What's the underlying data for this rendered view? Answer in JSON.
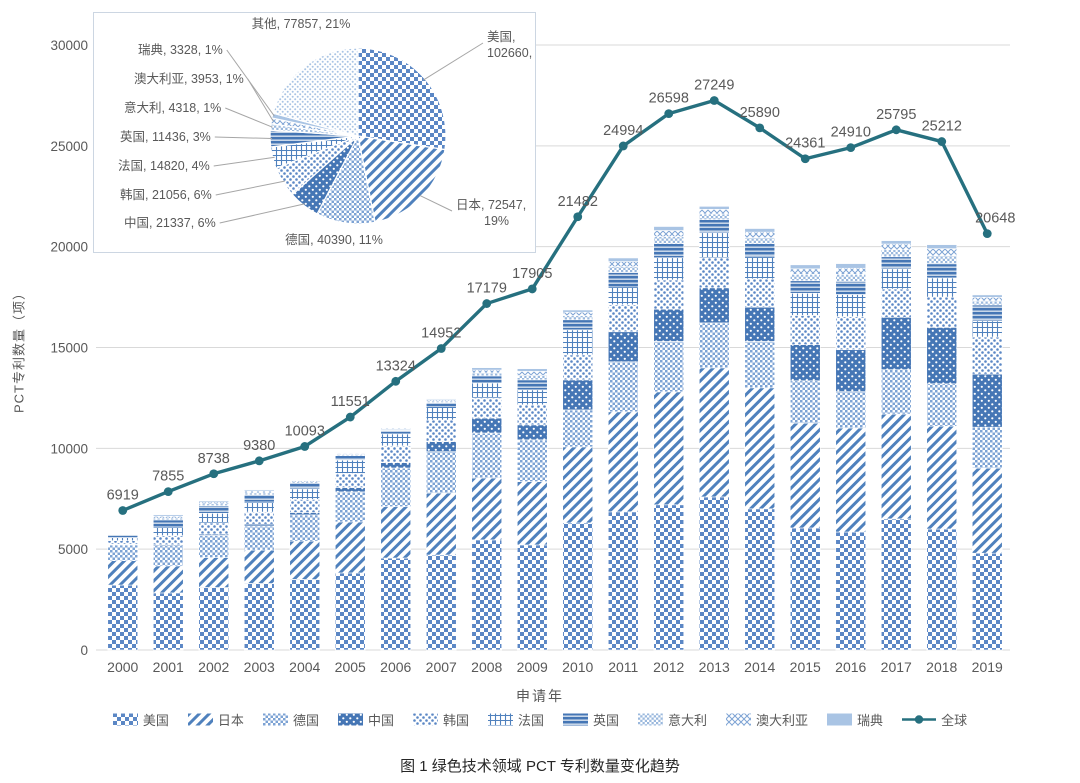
{
  "caption": "图 1 绿色技术领域 PCT 专利数量变化趋势",
  "axes": {
    "y_title": "PCT专利数量（项）",
    "x_title": "申请年",
    "y_ticks": [
      0,
      5000,
      10000,
      15000,
      20000,
      25000,
      30000
    ],
    "y_max": 30000
  },
  "colors": {
    "bar_primary": "#4f81bd",
    "bar_medium": "#5b87c5",
    "bar_dark": "#4576b5",
    "bar_light_1": "#7da3d4",
    "bar_light_2": "#9ab8dd",
    "bar_lightest": "#a9c4e4",
    "line": "#26707f",
    "text_gray": "#595959",
    "grid": "#d9d9d9",
    "inset_border": "#ccd6e2",
    "leader_line": "#a6a6a6",
    "caption_text": "#262626"
  },
  "legend": {
    "items": [
      "美国",
      "日本",
      "德国",
      "中国",
      "韩国",
      "法国",
      "英国",
      "意大利",
      "澳大利亚",
      "瑞典",
      "全球"
    ]
  },
  "chart_data": [
    {
      "id": "main-combo",
      "type": "bar",
      "stacked": true,
      "title": "",
      "xlabel": "申请年",
      "ylabel": "PCT专利数量（项）",
      "ylim": [
        0,
        30000
      ],
      "yticks": [
        0,
        5000,
        10000,
        15000,
        20000,
        25000,
        30000
      ],
      "grid": true,
      "legend_position": "bottom",
      "categories": [
        "2000",
        "2001",
        "2002",
        "2003",
        "2004",
        "2005",
        "2006",
        "2007",
        "2008",
        "2009",
        "2010",
        "2011",
        "2012",
        "2013",
        "2014",
        "2015",
        "2016",
        "2017",
        "2018",
        "2019"
      ],
      "series": [
        {
          "key": "us",
          "name": "美国",
          "pattern": "checker-medium",
          "values": [
            3220,
            2830,
            3100,
            3300,
            3500,
            3820,
            4560,
            4710,
            5460,
            5210,
            6300,
            6850,
            7200,
            7590,
            7000,
            6050,
            5850,
            6500,
            6000,
            4800
          ]
        },
        {
          "key": "jp",
          "name": "日本",
          "pattern": "diagonal-stripe",
          "values": [
            1210,
            1340,
            1480,
            1650,
            1900,
            2530,
            2545,
            3075,
            3070,
            3140,
            3770,
            4960,
            5600,
            6400,
            6000,
            5200,
            5160,
            5200,
            5100,
            4220
          ]
        },
        {
          "key": "de",
          "name": "德国",
          "pattern": "checker-small-light",
          "values": [
            780,
            1000,
            1100,
            1200,
            1300,
            1490,
            1920,
            2050,
            2230,
            2070,
            1835,
            2480,
            2500,
            2230,
            2300,
            2100,
            1800,
            2200,
            2100,
            2030
          ]
        },
        {
          "key": "cn",
          "name": "中国",
          "pattern": "dark-white-dots",
          "values": [
            30,
            50,
            70,
            90,
            120,
            215,
            265,
            495,
            745,
            745,
            1490,
            1490,
            1600,
            1740,
            1700,
            1790,
            2080,
            2600,
            2800,
            2630
          ]
        },
        {
          "key": "kr",
          "name": "韩国",
          "pattern": "dot-lattice",
          "values": [
            180,
            450,
            550,
            600,
            650,
            700,
            830,
            1075,
            990,
            990,
            1240,
            1340,
            1450,
            1490,
            1400,
            1450,
            1640,
            1400,
            1500,
            1840
          ]
        },
        {
          "key": "fr",
          "name": "法国",
          "pattern": "plaid-grid",
          "values": [
            160,
            430,
            480,
            500,
            520,
            660,
            595,
            660,
            745,
            745,
            1240,
            890,
            1100,
            1240,
            1100,
            1100,
            1100,
            1000,
            950,
            800
          ]
        },
        {
          "key": "uk",
          "name": "英国",
          "pattern": "dark-h-stripe",
          "values": [
            110,
            350,
            380,
            350,
            280,
            220,
            180,
            205,
            350,
            495,
            500,
            700,
            700,
            650,
            650,
            620,
            650,
            600,
            700,
            790
          ]
        },
        {
          "key": "it",
          "name": "意大利",
          "pattern": "checker-tiny-light",
          "values": [
            30,
            90,
            90,
            100,
            70,
            60,
            60,
            75,
            150,
            230,
            210,
            300,
            350,
            280,
            300,
            320,
            350,
            350,
            400,
            200
          ]
        },
        {
          "key": "au",
          "name": "澳大利亚",
          "pattern": "cross-hatch",
          "values": [
            20,
            90,
            90,
            90,
            60,
            50,
            45,
            60,
            140,
            190,
            165,
            250,
            300,
            230,
            270,
            270,
            300,
            280,
            350,
            180
          ]
        },
        {
          "key": "se",
          "name": "瑞典",
          "pattern": "solid-light",
          "values": [
            10,
            70,
            60,
            60,
            30,
            25,
            30,
            45,
            120,
            135,
            110,
            180,
            200,
            150,
            180,
            200,
            230,
            170,
            200,
            120
          ]
        }
      ],
      "line_overlay": {
        "key": "global",
        "name": "全球",
        "color": "#26707f",
        "values": [
          6919,
          7855,
          8738,
          9380,
          10093,
          11551,
          13324,
          14952,
          17179,
          17905,
          21482,
          24994,
          26598,
          27249,
          25890,
          24361,
          24910,
          25795,
          25212,
          20648
        ],
        "labels_shown": true
      }
    },
    {
      "id": "inset-pie",
      "type": "pie",
      "position": "inset-top-left",
      "slices": [
        {
          "key": "us",
          "name": "美国",
          "value": 102660,
          "pct": "27%"
        },
        {
          "key": "jp",
          "name": "日本",
          "value": 72547,
          "pct": "19%"
        },
        {
          "key": "de",
          "name": "德国",
          "value": 40390,
          "pct": "11%"
        },
        {
          "key": "cn",
          "name": "中国",
          "value": 21337,
          "pct": "6%"
        },
        {
          "key": "kr",
          "name": "韩国",
          "value": 21056,
          "pct": "6%"
        },
        {
          "key": "fr",
          "name": "法国",
          "value": 14820,
          "pct": "4%"
        },
        {
          "key": "uk",
          "name": "英国",
          "value": 11436,
          "pct": "3%"
        },
        {
          "key": "it",
          "name": "意大利",
          "value": 4318,
          "pct": "1%"
        },
        {
          "key": "au",
          "name": "澳大利亚",
          "value": 3953,
          "pct": "1%"
        },
        {
          "key": "se",
          "name": "瑞典",
          "value": 3328,
          "pct": "1%"
        },
        {
          "key": "others",
          "name": "其他",
          "value": 77857,
          "pct": "21%"
        }
      ]
    }
  ]
}
